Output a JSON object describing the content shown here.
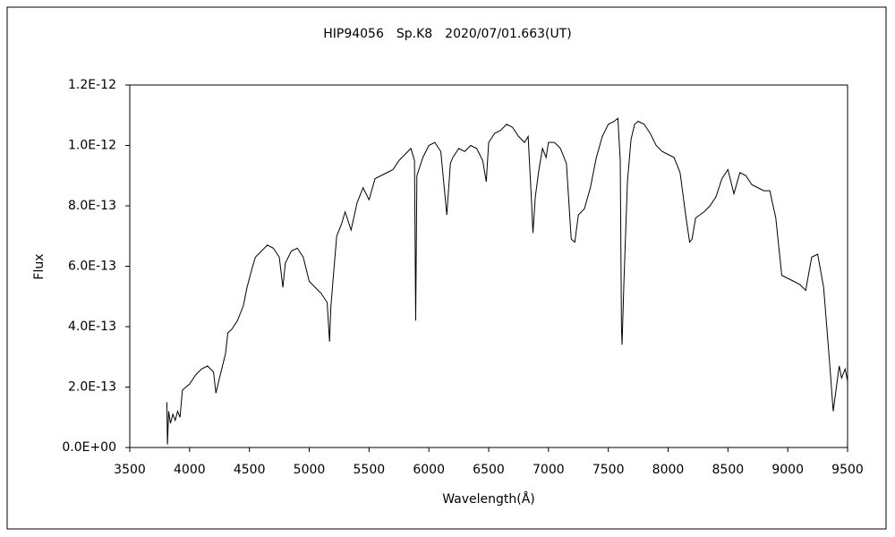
{
  "chart_data": {
    "type": "line",
    "title": "HIP94056　Sp.K8　2020/07/01.663(UT)",
    "x_label": "Wavelength(Å)",
    "y_label": "Flux",
    "color": "#000000",
    "xlim": [
      3500,
      9500
    ],
    "xticks": [
      3500,
      4000,
      4500,
      5000,
      5500,
      6000,
      6500,
      7000,
      7500,
      8000,
      8500,
      9000,
      9500
    ],
    "ylim": [
      0,
      1.2e-12
    ],
    "yticks": [
      {
        "value": 0,
        "label": "0.0E+00"
      },
      {
        "value": 2e-13,
        "label": "2.0E-13"
      },
      {
        "value": 4e-13,
        "label": "4.0E-13"
      },
      {
        "value": 6e-13,
        "label": "6.0E-13"
      },
      {
        "value": 8e-13,
        "label": "8.0E-13"
      },
      {
        "value": 1e-12,
        "label": "1.0E-12"
      },
      {
        "value": 1.2e-12,
        "label": "1.2E-12"
      }
    ],
    "x": [
      3810,
      3815,
      3825,
      3840,
      3860,
      3880,
      3900,
      3920,
      3940,
      3970,
      4000,
      4050,
      4100,
      4150,
      4200,
      4220,
      4250,
      4300,
      4320,
      4350,
      4400,
      4450,
      4480,
      4520,
      4550,
      4600,
      4650,
      4700,
      4750,
      4780,
      4800,
      4850,
      4900,
      4950,
      5000,
      5050,
      5100,
      5150,
      5170,
      5180,
      5200,
      5230,
      5270,
      5300,
      5350,
      5400,
      5450,
      5500,
      5550,
      5600,
      5650,
      5700,
      5750,
      5800,
      5850,
      5880,
      5890,
      5900,
      5950,
      6000,
      6050,
      6100,
      6150,
      6180,
      6200,
      6250,
      6300,
      6350,
      6400,
      6450,
      6480,
      6500,
      6550,
      6600,
      6650,
      6700,
      6750,
      6800,
      6830,
      6860,
      6870,
      6890,
      6920,
      6950,
      6980,
      7000,
      7050,
      7100,
      7150,
      7190,
      7220,
      7250,
      7300,
      7350,
      7400,
      7450,
      7500,
      7550,
      7580,
      7600,
      7610,
      7615,
      7630,
      7660,
      7690,
      7720,
      7750,
      7800,
      7850,
      7900,
      7950,
      8000,
      8050,
      8100,
      8150,
      8180,
      8200,
      8230,
      8300,
      8350,
      8400,
      8450,
      8500,
      8550,
      8600,
      8650,
      8700,
      8750,
      8800,
      8850,
      8900,
      8950,
      9000,
      9050,
      9100,
      9150,
      9200,
      9250,
      9300,
      9350,
      9380,
      9400,
      9430,
      9450,
      9480,
      9500
    ],
    "values": [
      1.5e-13,
      1e-14,
      1.2e-13,
      8e-14,
      1.1e-13,
      9e-14,
      1.2e-13,
      1e-13,
      1.9e-13,
      2e-13,
      2.1e-13,
      2.4e-13,
      2.6e-13,
      2.7e-13,
      2.5e-13,
      1.8e-13,
      2.3e-13,
      3.1e-13,
      3.8e-13,
      3.9e-13,
      4.2e-13,
      4.7e-13,
      5.3e-13,
      5.9e-13,
      6.3e-13,
      6.5e-13,
      6.7e-13,
      6.6e-13,
      6.3e-13,
      5.3e-13,
      6.1e-13,
      6.5e-13,
      6.6e-13,
      6.3e-13,
      5.5e-13,
      5.3e-13,
      5.1e-13,
      4.8e-13,
      3.5e-13,
      4.6e-13,
      5.6e-13,
      7e-13,
      7.4e-13,
      7.8e-13,
      7.2e-13,
      8.1e-13,
      8.6e-13,
      8.2e-13,
      8.9e-13,
      9e-13,
      9.1e-13,
      9.2e-13,
      9.5e-13,
      9.7e-13,
      9.9e-13,
      9.5e-13,
      4.2e-13,
      9e-13,
      9.6e-13,
      1e-12,
      1.01e-12,
      9.8e-13,
      7.7e-13,
      9.4e-13,
      9.6e-13,
      9.9e-13,
      9.8e-13,
      1e-12,
      9.9e-13,
      9.5e-13,
      8.8e-13,
      1.01e-12,
      1.04e-12,
      1.05e-12,
      1.07e-12,
      1.06e-12,
      1.03e-12,
      1.01e-12,
      1.03e-12,
      8e-13,
      7.1e-13,
      8.3e-13,
      9.2e-13,
      9.9e-13,
      9.6e-13,
      1.01e-12,
      1.01e-12,
      9.9e-13,
      9.4e-13,
      6.9e-13,
      6.8e-13,
      7.7e-13,
      7.9e-13,
      8.6e-13,
      9.6e-13,
      1.03e-12,
      1.07e-12,
      1.08e-12,
      1.09e-12,
      9.5e-13,
      4e-13,
      3.4e-13,
      5.4e-13,
      8.8e-13,
      1.02e-12,
      1.07e-12,
      1.08e-12,
      1.07e-12,
      1.04e-12,
      1e-12,
      9.8e-13,
      9.7e-13,
      9.6e-13,
      9.1e-13,
      7.6e-13,
      6.8e-13,
      6.9e-13,
      7.6e-13,
      7.8e-13,
      8e-13,
      8.3e-13,
      8.9e-13,
      9.2e-13,
      8.4e-13,
      9.1e-13,
      9e-13,
      8.7e-13,
      8.6e-13,
      8.5e-13,
      8.5e-13,
      7.6e-13,
      5.7e-13,
      5.6e-13,
      5.5e-13,
      5.4e-13,
      5.2e-13,
      6.3e-13,
      6.4e-13,
      5.3e-13,
      2.8e-13,
      1.2e-13,
      1.8e-13,
      2.7e-13,
      2.3e-13,
      2.6e-13,
      2.2e-13
    ]
  }
}
